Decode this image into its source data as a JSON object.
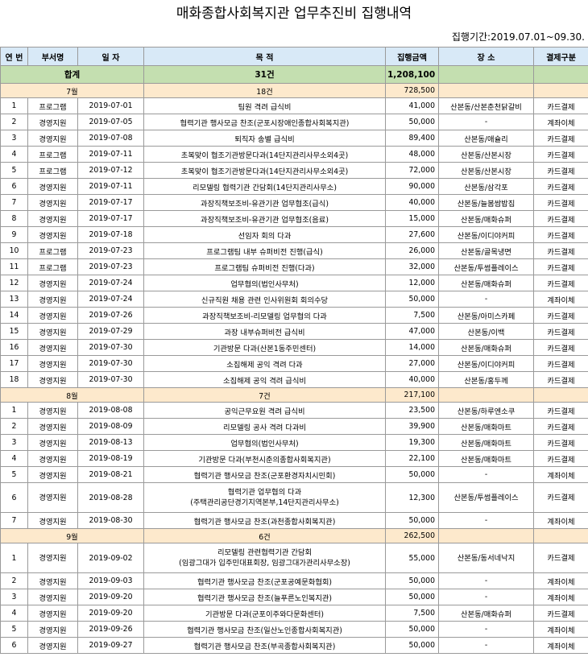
{
  "title": "매화종합사회복지관 업무추진비 집행내역",
  "period": "집행기간:2019.07.01~09.30.",
  "headers": [
    "연 번",
    "부서명",
    "일 자",
    "목 적",
    "집행금액",
    "장 소",
    "결제구분"
  ],
  "total": {
    "label": "합계",
    "count": "31건",
    "amount": "1,208,100"
  },
  "months": [
    {
      "month": "7월",
      "count": "18건",
      "amount": "728,500",
      "rows": [
        [
          "1",
          "프로그램",
          "2019-07-01",
          "팀원 격려 급식비",
          "41,000",
          "산본동/산본춘천닭갈비",
          "카드결제"
        ],
        [
          "2",
          "경영지원",
          "2019-07-05",
          "협력기관 행사모금 찬조(군포시장애인종합사회복지관)",
          "50,000",
          "-",
          "계좌이체"
        ],
        [
          "3",
          "경영지원",
          "2019-07-08",
          "퇴직자 송별 급식비",
          "89,400",
          "산본동/애슐리",
          "카드결제"
        ],
        [
          "4",
          "프로그램",
          "2019-07-11",
          "초복맞이 협조기관방문다과(14단지관리사무소외4곳)",
          "48,000",
          "산본동/산본시장",
          "카드결제"
        ],
        [
          "5",
          "프로그램",
          "2019-07-12",
          "초복맞이 협조기관방문다과(14단지관리사무소외4곳)",
          "72,000",
          "산본동/산본시장",
          "카드결제"
        ],
        [
          "6",
          "경영지원",
          "2019-07-11",
          "리모델링 협력기관 간담회(14단지관리사무소)",
          "90,000",
          "산본동/삼각포",
          "카드결제"
        ],
        [
          "7",
          "경영지원",
          "2019-07-17",
          "과장직책보조비-유관기관 업무협조(급식)",
          "40,000",
          "산본동/늘봄쌈밥집",
          "카드결제"
        ],
        [
          "8",
          "경영지원",
          "2019-07-17",
          "과장직책보조비-유관기관 업무협조(음료)",
          "15,000",
          "산본동/매화슈퍼",
          "카드결제"
        ],
        [
          "9",
          "경영지원",
          "2019-07-18",
          "선임자 회의 다과",
          "27,600",
          "산본동/이디야커피",
          "카드결제"
        ],
        [
          "10",
          "프로그램",
          "2019-07-23",
          "프로그램팀 내부 슈퍼비전 진행(급식)",
          "26,000",
          "산본동/골목냉면",
          "카드결제"
        ],
        [
          "11",
          "프로그램",
          "2019-07-23",
          "프로그램팀 슈퍼비전 진행(다과)",
          "32,000",
          "산본동/투썸플레이스",
          "카드결제"
        ],
        [
          "12",
          "경영지원",
          "2019-07-24",
          "업무협의(법인사무처)",
          "12,000",
          "산본동/매화슈퍼",
          "카드결제"
        ],
        [
          "13",
          "경영지원",
          "2019-07-24",
          "신규직원 채용 관련 인사위원회 회의수당",
          "50,000",
          "-",
          "계좌이체"
        ],
        [
          "14",
          "경영지원",
          "2019-07-26",
          "과장직책보조비-리모델링 업무협의 다과",
          "7,500",
          "산본동/아미스카페",
          "카드결제"
        ],
        [
          "15",
          "경영지원",
          "2019-07-29",
          "과장 내부슈퍼비전 급식비",
          "47,000",
          "산본동/이백",
          "카드결제"
        ],
        [
          "16",
          "경영지원",
          "2019-07-30",
          "기관방문 다과(산본1동주민센터)",
          "14,000",
          "산본동/매화슈퍼",
          "카드결제"
        ],
        [
          "17",
          "경영지원",
          "2019-07-30",
          "소집해제 공익 격려 다과",
          "27,000",
          "산본동/이디야커피",
          "카드결제"
        ],
        [
          "18",
          "경영지원",
          "2019-07-30",
          "소집해제 공익 격려 급식비",
          "40,000",
          "산본동/홍두께",
          "카드결제"
        ]
      ]
    },
    {
      "month": "8월",
      "count": "7건",
      "amount": "217,100",
      "rows": [
        [
          "1",
          "경영지원",
          "2019-08-08",
          "공익근무요원 격려 급식비",
          "23,500",
          "산본동/하루엔소쿠",
          "카드결제"
        ],
        [
          "2",
          "경영지원",
          "2019-08-09",
          "리모델링 공사 격려 다과비",
          "39,900",
          "산본동/매화마트",
          "카드결제"
        ],
        [
          "3",
          "경영지원",
          "2019-08-13",
          "업무협의(법인사무처)",
          "19,300",
          "산본동/매화마트",
          "카드결제"
        ],
        [
          "4",
          "경영지원",
          "2019-08-19",
          "기관방문 다과(부천시춘의종합사회복지관)",
          "22,100",
          "산본동/매화마트",
          "카드결제"
        ],
        [
          "5",
          "경영지원",
          "2019-08-21",
          "협력기관 행사모금 찬조(군포환경자치시민회)",
          "50,000",
          "-",
          "계좌이체"
        ],
        [
          "6",
          "경영지원",
          "2019-08-28",
          "협력기관 업무협의 다과|(주택관리공단경기지역본부,14단지관리사무소)",
          "12,300",
          "산본동/투썸플레이스",
          "카드결제"
        ],
        [
          "7",
          "경영지원",
          "2019-08-30",
          "협력기관 행사모금 찬조(과천종합사회복지관)",
          "50,000",
          "-",
          "계좌이체"
        ]
      ]
    },
    {
      "month": "9월",
      "count": "6건",
      "amount": "262,500",
      "rows": [
        [
          "1",
          "경영지원",
          "2019-09-02",
          "리모델링 관련협력기관 간담회|(임광그대가 입주민대표회장, 임광그대가관리사무소장)",
          "55,000",
          "산본동/동서네낙지",
          "카드결제"
        ],
        [
          "2",
          "경영지원",
          "2019-09-03",
          "협력기관 행사모금 찬조(군포공예문화협회)",
          "50,000",
          "-",
          "계좌이체"
        ],
        [
          "3",
          "경영지원",
          "2019-09-20",
          "협력기관 행사모금 찬조(늘푸른노인복지관)",
          "50,000",
          "-",
          "계좌이체"
        ],
        [
          "4",
          "경영지원",
          "2019-09-20",
          "기관방문 다과(군포이주와다문화센터)",
          "7,500",
          "산본동/매화슈퍼",
          "카드결제"
        ],
        [
          "5",
          "경영지원",
          "2019-09-26",
          "협력기관 행사모금 찬조(일산노인종합사회복지관)",
          "50,000",
          "-",
          "계좌이체"
        ],
        [
          "6",
          "경영지원",
          "2019-09-27",
          "협력기관 행사모금 찬조(부곡종합사회복지관)",
          "50,000",
          "-",
          "계좌이체"
        ]
      ]
    }
  ]
}
